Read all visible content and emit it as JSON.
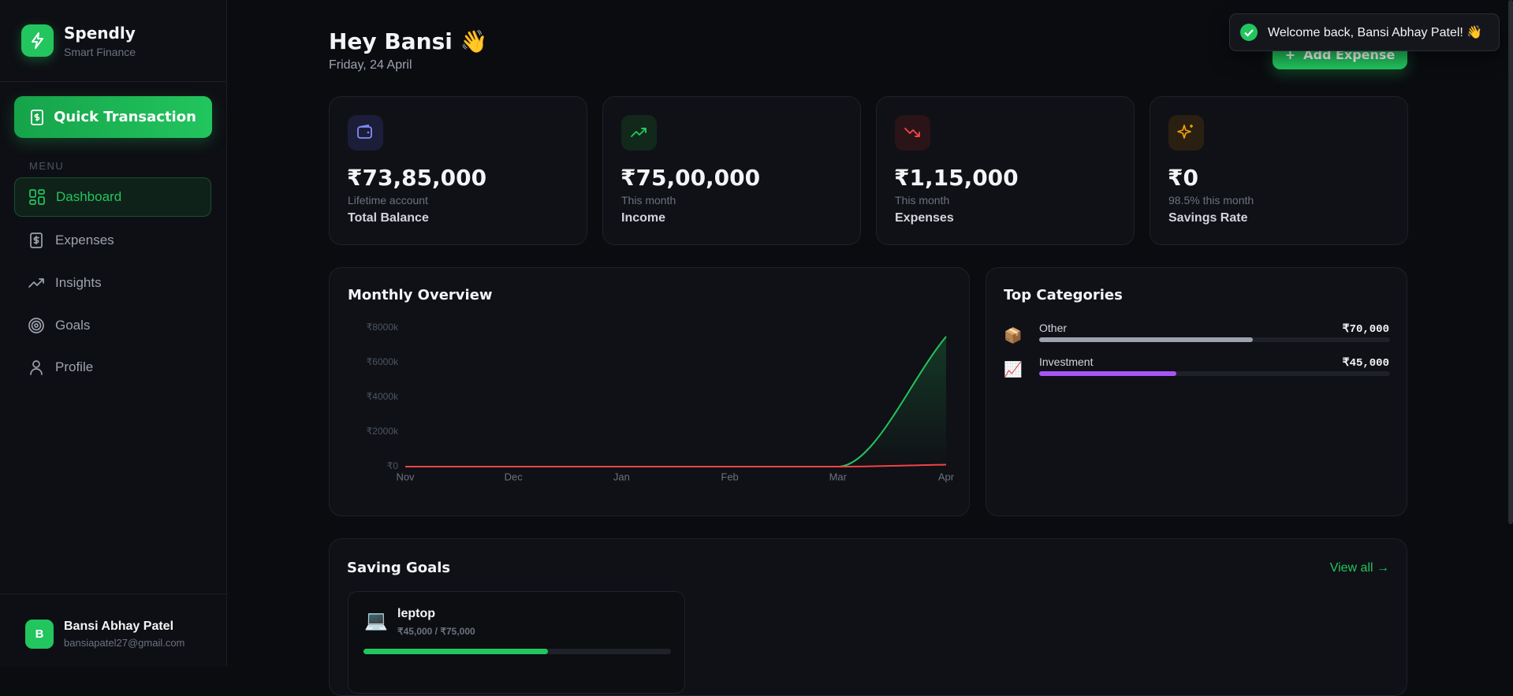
{
  "sidebar": {
    "brand": "Spendly",
    "tagline": "Smart Finance",
    "quick_action": "Quick Transaction",
    "menu_label": "MENU",
    "nav": [
      {
        "label": "Dashboard",
        "active": true
      },
      {
        "label": "Expenses",
        "active": false
      },
      {
        "label": "Insights",
        "active": false
      },
      {
        "label": "Goals",
        "active": false
      },
      {
        "label": "Profile",
        "active": false
      }
    ],
    "user": {
      "initial": "B",
      "name": "Bansi Abhay Patel",
      "email": "bansiapatel27@gmail.com"
    }
  },
  "header": {
    "greeting": "Hey Bansi 👋",
    "date": "Friday, 24 April",
    "action": "Add Expense"
  },
  "toast": {
    "message": "Welcome back, Bansi Abhay Patel! 👋"
  },
  "stats": [
    {
      "value": "₹73,85,000",
      "caption": "Lifetime account",
      "label": "Total Balance"
    },
    {
      "value": "₹75,00,000",
      "caption": "This month",
      "label": "Income"
    },
    {
      "value": "₹1,15,000",
      "caption": "This month",
      "label": "Expenses"
    },
    {
      "value": "₹0",
      "caption": "98.5% this month",
      "label": "Savings Rate"
    }
  ],
  "chart_data": {
    "type": "line",
    "title": "Monthly Overview",
    "categories": [
      "Nov",
      "Dec",
      "Jan",
      "Feb",
      "Mar",
      "Apr"
    ],
    "series": [
      {
        "color": "#22c55e",
        "values": [
          0,
          0,
          0,
          0,
          0,
          7500
        ],
        "area": true
      },
      {
        "color": "#ef4444",
        "values": [
          0,
          0,
          0,
          0,
          0,
          115
        ],
        "area": false
      }
    ],
    "ylim": [
      0,
      8000
    ],
    "yticks": [
      {
        "value": 0,
        "label": "₹0"
      },
      {
        "value": 2000,
        "label": "₹2000k"
      },
      {
        "value": 4000,
        "label": "₹4000k"
      },
      {
        "value": 6000,
        "label": "₹6000k"
      },
      {
        "value": 8000,
        "label": "₹8000k"
      }
    ],
    "grid": false,
    "smooth": true
  },
  "top_categories": {
    "title": "Top Categories",
    "items": [
      {
        "icon": "📦",
        "name": "Other",
        "amount": 70000,
        "amount_label": "₹70,000",
        "color": "#9ca3af"
      },
      {
        "icon": "📈",
        "name": "Investment",
        "amount": 45000,
        "amount_label": "₹45,000",
        "color": "#a855f7"
      }
    ]
  },
  "goals": {
    "title": "Saving Goals",
    "link": "View all →",
    "items": [
      {
        "icon": "💻",
        "name": "leptop",
        "saved": 45000,
        "target": 75000,
        "progress_label": "₹45,000 / ₹75,000"
      }
    ]
  }
}
